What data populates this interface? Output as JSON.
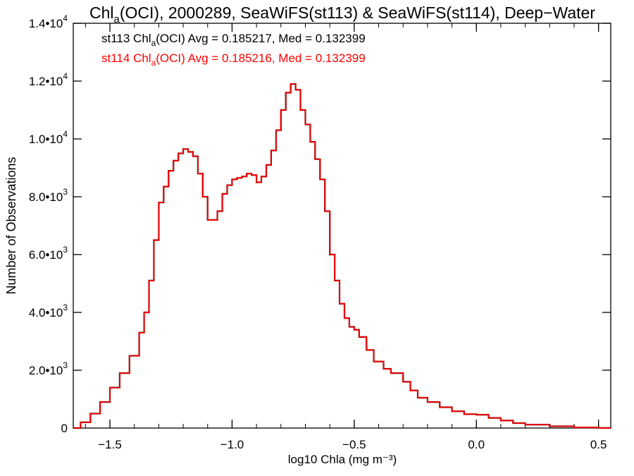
{
  "chart_data": {
    "type": "line",
    "title": "Chl_a(OCI), 2000289, SeaWiFS(st113) & SeaWiFS(st114), Deep−Water",
    "title_parts": {
      "pre": "Chl",
      "sub": "a",
      "post": "(OCI), 2000289, SeaWiFS(st113) & SeaWiFS(st114), Deep−Water"
    },
    "xlabel": "log10 Chla (mg m⁻³)",
    "ylabel": "Number of Observations",
    "xlim": [
      -1.65,
      0.55
    ],
    "ylim": [
      0,
      14000
    ],
    "grid": false,
    "x_ticks": [
      {
        "value": -1.5,
        "label": "−1.5"
      },
      {
        "value": -1.0,
        "label": "−1.0"
      },
      {
        "value": -0.5,
        "label": "−0.5"
      },
      {
        "value": 0.0,
        "label": "0.0"
      },
      {
        "value": 0.5,
        "label": "0.5"
      }
    ],
    "y_ticks": [
      {
        "value": 0,
        "mant": "0",
        "exp": ""
      },
      {
        "value": 2000,
        "mant": "2.0•10",
        "exp": "3"
      },
      {
        "value": 4000,
        "mant": "4.0•10",
        "exp": "3"
      },
      {
        "value": 6000,
        "mant": "6.0•10",
        "exp": "3"
      },
      {
        "value": 8000,
        "mant": "8.0•10",
        "exp": "3"
      },
      {
        "value": 10000,
        "mant": "1.0•10",
        "exp": "4"
      },
      {
        "value": 12000,
        "mant": "1.2•10",
        "exp": "4"
      },
      {
        "value": 14000,
        "mant": "1.4•10",
        "exp": "4"
      }
    ],
    "annotations": [
      {
        "pre": "st113 Chl",
        "sub": "a",
        "post": "(OCI) Avg = 0.185217, Med = 0.132399",
        "color": "#000000"
      },
      {
        "pre": "st114 Chl",
        "sub": "a",
        "post": "(OCI) Avg = 0.185216, Med = 0.132399",
        "color": "#ff0000"
      }
    ],
    "series": [
      {
        "color": "#000000",
        "x": [
          -1.65,
          -1.62,
          -1.58,
          -1.54,
          -1.5,
          -1.46,
          -1.42,
          -1.38,
          -1.36,
          -1.34,
          -1.32,
          -1.3,
          -1.28,
          -1.26,
          -1.24,
          -1.22,
          -1.2,
          -1.18,
          -1.16,
          -1.14,
          -1.12,
          -1.1,
          -1.08,
          -1.06,
          -1.04,
          -1.02,
          -1.0,
          -0.98,
          -0.96,
          -0.94,
          -0.92,
          -0.9,
          -0.88,
          -0.86,
          -0.84,
          -0.82,
          -0.8,
          -0.78,
          -0.76,
          -0.74,
          -0.72,
          -0.7,
          -0.68,
          -0.66,
          -0.64,
          -0.62,
          -0.6,
          -0.58,
          -0.56,
          -0.54,
          -0.52,
          -0.5,
          -0.48,
          -0.45,
          -0.42,
          -0.38,
          -0.35,
          -0.3,
          -0.27,
          -0.24,
          -0.2,
          -0.15,
          -0.1,
          -0.05,
          0.0,
          0.05,
          0.1,
          0.15,
          0.2,
          0.3,
          0.4,
          0.5,
          0.55
        ],
        "y": [
          0,
          200,
          500,
          900,
          1400,
          1900,
          2500,
          3300,
          4000,
          5100,
          6500,
          7800,
          8350,
          8900,
          9250,
          9500,
          9650,
          9550,
          9400,
          8800,
          8000,
          7200,
          7200,
          7500,
          8100,
          8400,
          8600,
          8650,
          8700,
          8800,
          8750,
          8500,
          8700,
          9100,
          9600,
          10300,
          11000,
          11600,
          11900,
          11700,
          11000,
          10500,
          9900,
          9300,
          8600,
          7500,
          6000,
          5100,
          4300,
          3800,
          3500,
          3400,
          3150,
          2700,
          2300,
          2050,
          1900,
          1600,
          1300,
          1050,
          900,
          720,
          580,
          480,
          460,
          350,
          260,
          170,
          120,
          60,
          20,
          5,
          0
        ]
      },
      {
        "color": "#ff0000",
        "x": [
          -1.65,
          -1.62,
          -1.58,
          -1.54,
          -1.5,
          -1.46,
          -1.42,
          -1.38,
          -1.36,
          -1.34,
          -1.32,
          -1.3,
          -1.28,
          -1.26,
          -1.24,
          -1.22,
          -1.2,
          -1.18,
          -1.16,
          -1.14,
          -1.12,
          -1.1,
          -1.08,
          -1.06,
          -1.04,
          -1.02,
          -1.0,
          -0.98,
          -0.96,
          -0.94,
          -0.92,
          -0.9,
          -0.88,
          -0.86,
          -0.84,
          -0.82,
          -0.8,
          -0.78,
          -0.76,
          -0.74,
          -0.72,
          -0.7,
          -0.68,
          -0.66,
          -0.64,
          -0.62,
          -0.6,
          -0.58,
          -0.56,
          -0.54,
          -0.52,
          -0.5,
          -0.48,
          -0.45,
          -0.42,
          -0.38,
          -0.35,
          -0.3,
          -0.27,
          -0.24,
          -0.2,
          -0.15,
          -0.1,
          -0.05,
          0.0,
          0.05,
          0.1,
          0.15,
          0.2,
          0.3,
          0.4,
          0.5,
          0.55
        ],
        "y": [
          0,
          200,
          500,
          900,
          1400,
          1900,
          2500,
          3300,
          4000,
          5100,
          6500,
          7800,
          8350,
          8900,
          9250,
          9500,
          9650,
          9550,
          9400,
          8800,
          8000,
          7200,
          7200,
          7500,
          8100,
          8400,
          8600,
          8650,
          8700,
          8800,
          8750,
          8500,
          8700,
          9100,
          9600,
          10300,
          11000,
          11600,
          11900,
          11700,
          11000,
          10500,
          9900,
          9300,
          8600,
          7500,
          6000,
          5100,
          4300,
          3800,
          3500,
          3400,
          3150,
          2700,
          2300,
          2050,
          1900,
          1600,
          1300,
          1050,
          900,
          720,
          580,
          480,
          460,
          350,
          260,
          170,
          120,
          60,
          20,
          5,
          0
        ]
      }
    ]
  }
}
